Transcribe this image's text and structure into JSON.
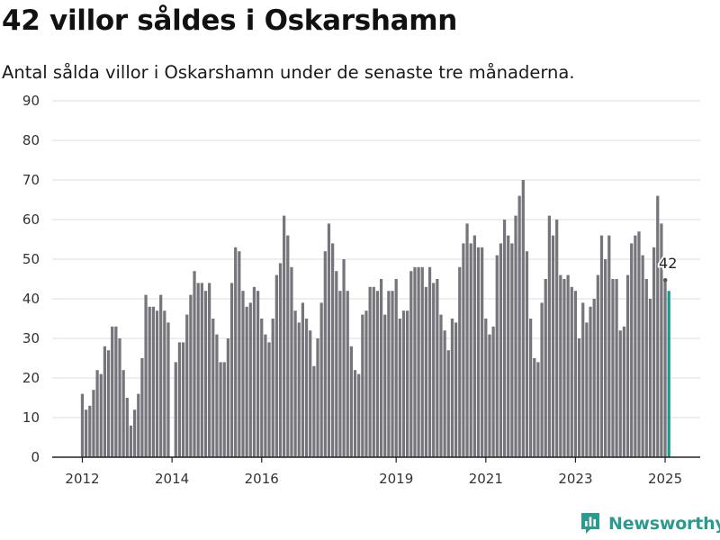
{
  "header": {
    "title": "42 villor såldes i Oskarshamn",
    "subtitle": "Antal sålda villor i Oskarshamn under de senaste tre månaderna."
  },
  "brand": {
    "name": "Newsworthy",
    "icon": "bar-chart-logo-icon",
    "color": "#2b9a8f"
  },
  "colors": {
    "bar": "#76757c",
    "highlight": "#1a9a8c",
    "grid": "#dcdcdc",
    "axis": "#222222"
  },
  "chart_data": {
    "type": "bar",
    "title": "42 villor såldes i Oskarshamn",
    "subtitle": "Antal sålda villor i Oskarshamn under de senaste tre månaderna.",
    "xlabel": "",
    "ylabel": "",
    "ylim": [
      0,
      90
    ],
    "yticks": [
      0,
      10,
      20,
      30,
      40,
      50,
      60,
      70,
      80,
      90
    ],
    "grid": true,
    "legend": "none",
    "period": "rolling three-month total, monthly",
    "x_start": "2012-01",
    "x_end": "2025-02",
    "xticks": [
      {
        "label": "2012",
        "date": "2012-01"
      },
      {
        "label": "2014",
        "date": "2014-01"
      },
      {
        "label": "2016",
        "date": "2016-01"
      },
      {
        "label": "2019",
        "date": "2019-01"
      },
      {
        "label": "2021",
        "date": "2021-01"
      },
      {
        "label": "2023",
        "date": "2023-01"
      },
      {
        "label": "2025",
        "date": "2025-01"
      }
    ],
    "values": [
      16,
      12,
      13,
      17,
      22,
      21,
      28,
      27,
      33,
      33,
      30,
      22,
      15,
      8,
      12,
      16,
      25,
      41,
      38,
      38,
      37,
      41,
      37,
      34,
      0,
      24,
      29,
      29,
      36,
      41,
      47,
      44,
      44,
      42,
      44,
      35,
      31,
      24,
      24,
      30,
      44,
      53,
      52,
      42,
      38,
      39,
      43,
      42,
      35,
      31,
      29,
      35,
      46,
      49,
      61,
      56,
      48,
      37,
      34,
      39,
      35,
      32,
      23,
      30,
      39,
      52,
      59,
      54,
      47,
      42,
      50,
      42,
      28,
      22,
      21,
      36,
      37,
      43,
      43,
      42,
      45,
      36,
      42,
      42,
      45,
      35,
      37,
      37,
      47,
      48,
      48,
      48,
      43,
      48,
      44,
      45,
      36,
      32,
      27,
      35,
      34,
      48,
      54,
      59,
      54,
      56,
      53,
      53,
      35,
      31,
      33,
      51,
      54,
      60,
      56,
      54,
      61,
      66,
      70,
      52,
      35,
      25,
      24,
      39,
      45,
      61,
      56,
      60,
      46,
      45,
      46,
      43,
      42,
      30,
      39,
      34,
      38,
      40,
      46,
      56,
      50,
      56,
      45,
      45,
      32,
      33,
      46,
      54,
      56,
      57,
      51,
      45,
      40,
      53,
      66,
      59,
      45,
      42
    ],
    "annotations": [
      {
        "text": "42",
        "target": "last-bar"
      }
    ]
  }
}
